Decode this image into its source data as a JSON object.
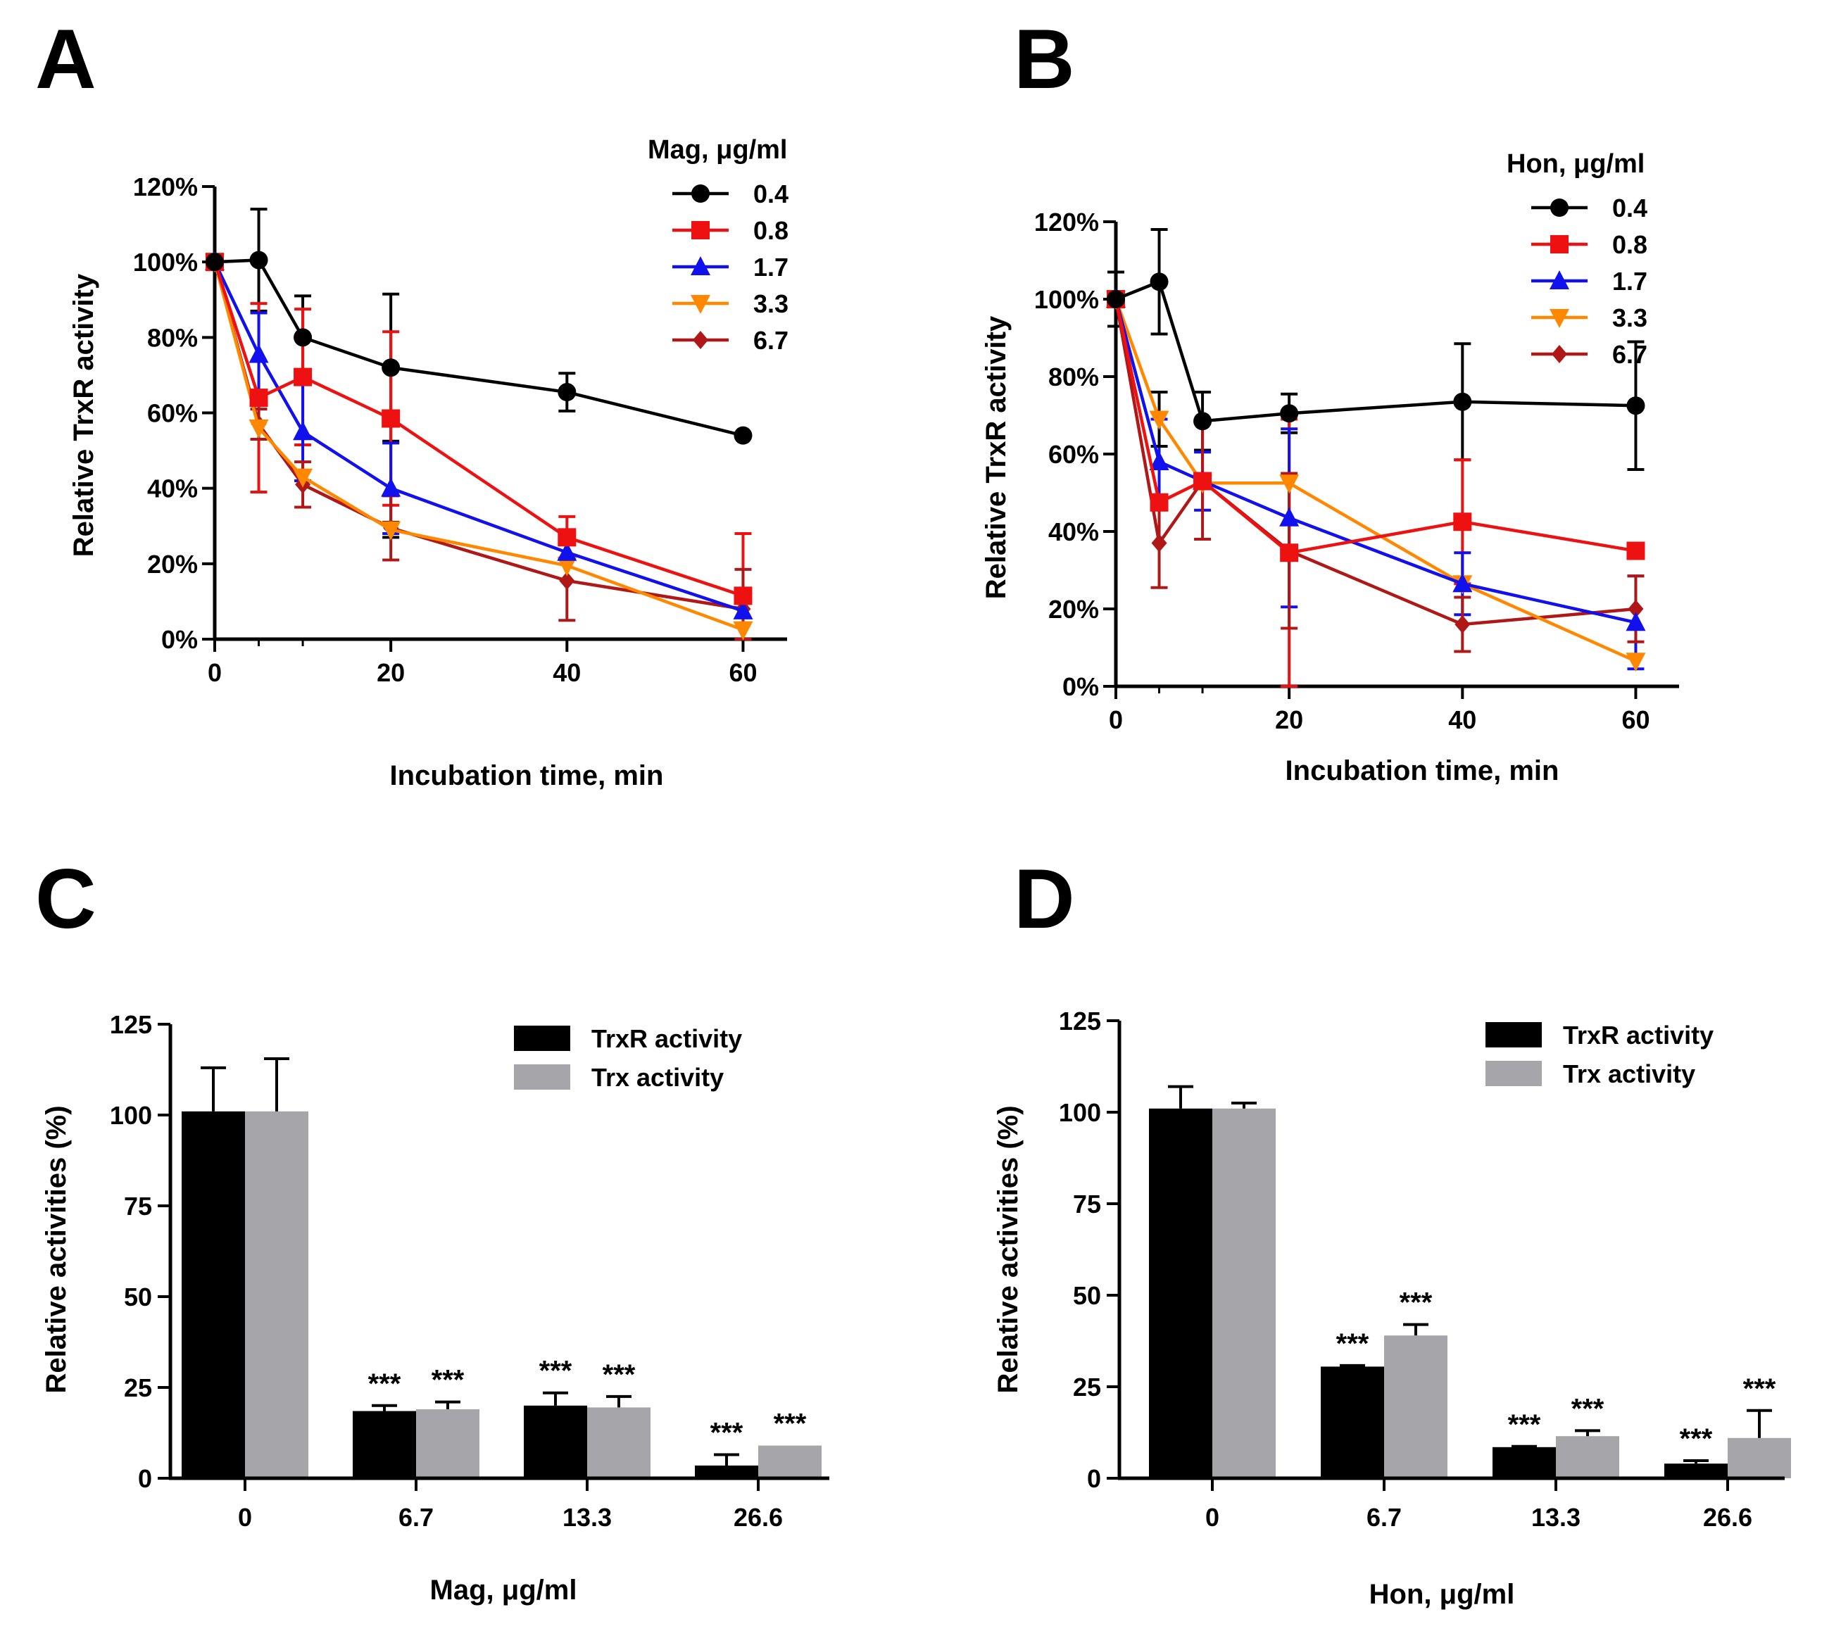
{
  "chart_data": [
    {
      "id": "A",
      "type": "line",
      "panel_label": "A",
      "xlabel": "Incubation time, min",
      "ylabel": "Relative TrxR activity",
      "x": [
        0,
        5,
        10,
        20,
        40,
        60
      ],
      "xticks": [
        0,
        20,
        40,
        60
      ],
      "xlim": [
        0,
        65
      ],
      "yticks": [
        0,
        20,
        40,
        60,
        80,
        100,
        120
      ],
      "ytick_labels": [
        "0%",
        "20%",
        "40%",
        "60%",
        "80%",
        "100%",
        "120%"
      ],
      "ylim": [
        0,
        120
      ],
      "legend_title": "Mag, μg/ml",
      "series": [
        {
          "name": "0.4",
          "color": "#000000",
          "marker": "circle",
          "values": [
            100,
            100.5,
            80,
            72,
            65.5,
            54
          ],
          "errors": [
            0,
            13.5,
            11,
            19.5,
            5,
            0
          ]
        },
        {
          "name": "0.8",
          "color": "#ee1111",
          "marker": "square",
          "values": [
            100,
            64,
            69.5,
            58.5,
            27,
            11.5
          ],
          "errors": [
            0,
            25,
            18,
            23,
            5.5,
            16.5
          ]
        },
        {
          "name": "1.7",
          "color": "#1111ee",
          "marker": "triangle-up",
          "values": [
            100,
            75.5,
            55,
            40,
            23,
            7.5
          ],
          "errors": [
            0,
            11,
            13,
            12,
            0,
            0
          ]
        },
        {
          "name": "3.3",
          "color": "#ff8800",
          "marker": "triangle-down",
          "values": [
            100,
            56,
            43,
            29,
            19.5,
            2.5
          ],
          "errors": [
            0,
            0,
            0,
            2,
            0,
            0
          ]
        },
        {
          "name": "6.7",
          "color": "#b01818",
          "marker": "diamond",
          "values": [
            100,
            57,
            41,
            29.5,
            15.5,
            8
          ],
          "errors": [
            0,
            4,
            6,
            8.5,
            10.5,
            10.5
          ]
        }
      ]
    },
    {
      "id": "B",
      "type": "line",
      "panel_label": "B",
      "xlabel": "Incubation time, min",
      "ylabel": "Relative TrxR activity",
      "x": [
        0,
        5,
        10,
        20,
        40,
        60
      ],
      "xticks": [
        0,
        20,
        40,
        60
      ],
      "xlim": [
        0,
        65
      ],
      "yticks": [
        0,
        20,
        40,
        60,
        80,
        100,
        120
      ],
      "ytick_labels": [
        "0%",
        "20%",
        "40%",
        "60%",
        "80%",
        "100%",
        "120%"
      ],
      "ylim": [
        0,
        120
      ],
      "legend_title": "Hon, μg/ml",
      "series": [
        {
          "name": "0.4",
          "color": "#000000",
          "marker": "circle",
          "values": [
            100,
            104.5,
            68.5,
            70.5,
            73.5,
            72.5
          ],
          "errors": [
            7,
            13.5,
            7.5,
            5,
            15,
            16.5
          ]
        },
        {
          "name": "0.8",
          "color": "#ee1111",
          "marker": "square",
          "values": [
            100,
            47.5,
            53,
            34.5,
            42.5,
            35
          ],
          "errors": [
            0,
            0,
            0,
            34.5,
            16,
            0
          ]
        },
        {
          "name": "1.7",
          "color": "#1111ee",
          "marker": "triangle-up",
          "values": [
            100,
            58,
            53,
            43.5,
            26.5,
            16.5
          ],
          "errors": [
            0,
            11,
            7.5,
            23,
            8,
            12
          ]
        },
        {
          "name": "3.3",
          "color": "#ff8800",
          "marker": "triangle-down",
          "values": [
            100,
            69,
            52.5,
            52.5,
            26.5,
            6.5
          ],
          "errors": [
            0,
            7,
            0,
            0,
            0,
            0
          ]
        },
        {
          "name": "6.7",
          "color": "#b01818",
          "marker": "diamond",
          "values": [
            100,
            37,
            53,
            35,
            16,
            20
          ],
          "errors": [
            0,
            11.5,
            15,
            20,
            7,
            8.5
          ]
        }
      ]
    },
    {
      "id": "C",
      "type": "bar",
      "panel_label": "C",
      "xlabel": "Mag, μg/ml",
      "ylabel": "Relative activities (%)",
      "categories": [
        "0",
        "6.7",
        "13.3",
        "26.6"
      ],
      "yticks": [
        0,
        25,
        50,
        75,
        100,
        125
      ],
      "ylim": [
        0,
        125
      ],
      "series": [
        {
          "name": "TrxR activity",
          "color": "#000000",
          "values": [
            101,
            18.5,
            20,
            3.5
          ],
          "errors": [
            12,
            1.5,
            3.5,
            3
          ],
          "stars": [
            "",
            "***",
            "***",
            "***"
          ]
        },
        {
          "name": "Trx activity",
          "color": "#a6a6aa",
          "values": [
            101,
            19,
            19.5,
            9
          ],
          "errors": [
            14.5,
            2,
            3,
            0
          ],
          "stars": [
            "",
            "***",
            "***",
            "***"
          ]
        }
      ]
    },
    {
      "id": "D",
      "type": "bar",
      "panel_label": "D",
      "xlabel": "Hon, μg/ml",
      "ylabel": "Relative activities (%)",
      "categories": [
        "0",
        "6.7",
        "13.3",
        "26.6"
      ],
      "yticks": [
        0,
        25,
        50,
        75,
        100,
        125
      ],
      "ylim": [
        0,
        125
      ],
      "series": [
        {
          "name": "TrxR activity",
          "color": "#000000",
          "values": [
            101,
            30.5,
            8.5,
            4
          ],
          "errors": [
            6,
            0.3,
            0.2,
            0.8
          ],
          "stars": [
            "",
            "***",
            "***",
            "***"
          ]
        },
        {
          "name": "Trx activity",
          "color": "#a6a6aa",
          "values": [
            101,
            39,
            11.5,
            11
          ],
          "errors": [
            1.5,
            3,
            1.5,
            7.5
          ],
          "stars": [
            "",
            "***",
            "***",
            "***"
          ]
        }
      ]
    }
  ]
}
